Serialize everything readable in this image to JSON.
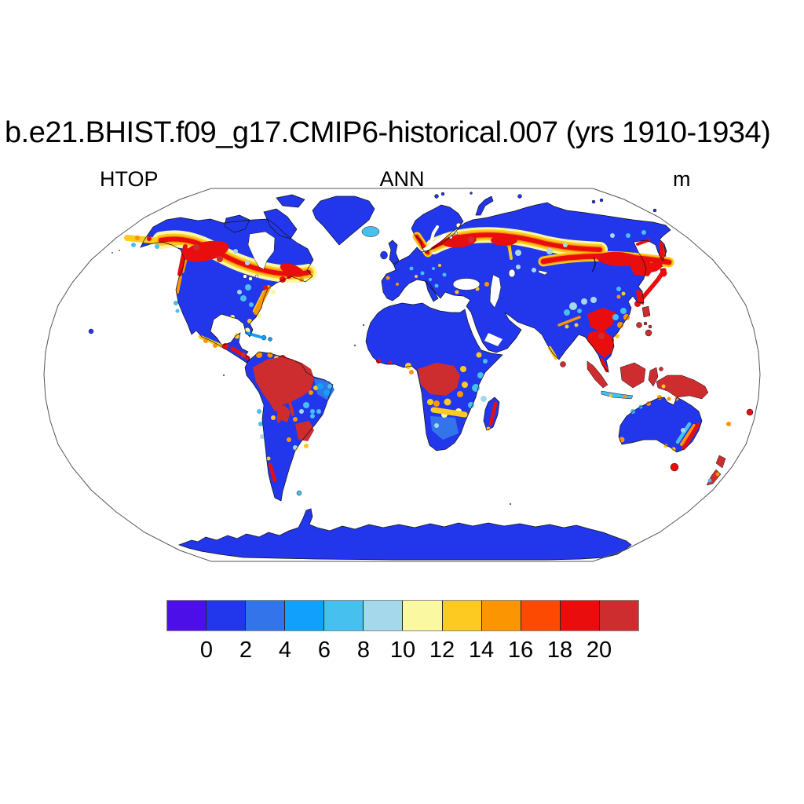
{
  "title": "b.e21.BHIST.f09_g17.CMIP6-historical.007 (yrs 1910-1934)",
  "labels": {
    "variable": "HTOP",
    "season": "ANN",
    "units": "m"
  },
  "colorbar": {
    "tick_labels": [
      "0",
      "2",
      "4",
      "6",
      "8",
      "10",
      "12",
      "14",
      "16",
      "18",
      "20"
    ],
    "tick_values": [
      0,
      2,
      4,
      6,
      8,
      10,
      12,
      14,
      16,
      18,
      20
    ],
    "colors": [
      "#4c0fe8",
      "#2237ec",
      "#3474ea",
      "#11a0fb",
      "#46c0ef",
      "#a6d8ec",
      "#fbf8a2",
      "#fcca20",
      "#fb9502",
      "#fc4a02",
      "#e90d0e",
      "#ce2d30"
    ]
  },
  "chart_data": {
    "type": "heatmap",
    "projection": "Robinson world map, oceans shown white",
    "title": "b.e21.BHIST.f09_g17.CMIP6-historical.007 (yrs 1910-1934)",
    "variable": "HTOP",
    "season": "ANN",
    "units": "m",
    "levels": [
      0,
      2,
      4,
      6,
      8,
      10,
      12,
      14,
      16,
      18,
      20
    ],
    "palette": [
      "#4c0fe8",
      "#2237ec",
      "#3474ea",
      "#11a0fb",
      "#46c0ef",
      "#a6d8ec",
      "#fbf8a2",
      "#fcca20",
      "#fb9502",
      "#fc4a02",
      "#e90d0e",
      "#ce2d30"
    ],
    "legend_position": "bottom",
    "notable_regions": [
      {
        "region": "Amazon Basin",
        "approx_value_m": "> 20"
      },
      {
        "region": "Congo Basin",
        "approx_value_m": "> 20"
      },
      {
        "region": "Maritime Southeast Asia, New Guinea, Indochina",
        "approx_value_m": "> 20"
      },
      {
        "region": "Boreal forest belt (Canada, Scandinavia, Siberia)",
        "approx_value_m": "10 - 20 with yellow/orange fringes"
      },
      {
        "region": "Pacific Northwest coast, SE Brazil, Madagascar east coast, Japan, E Australia coast, New Zealand, Tasmania, Central America",
        "approx_value_m": "14 - 20"
      },
      {
        "region": "Deserts, tundra, Greenland, Antarctica, central Australia, western USA",
        "approx_value_m": "0 - 2"
      },
      {
        "region": "Oceans and large lakes",
        "approx_value_m": "no data (white)"
      }
    ]
  }
}
